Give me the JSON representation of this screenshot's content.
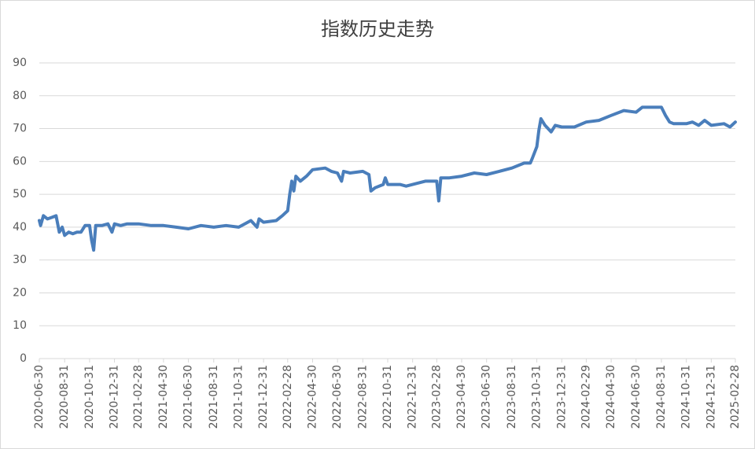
{
  "chart_data": {
    "type": "line",
    "title": "指数历史走势",
    "color": "#4a7ebb",
    "grid": true,
    "x": [
      "2020-06-30",
      "2020-07-03",
      "2020-07-10",
      "2020-07-20",
      "2020-07-31",
      "2020-08-10",
      "2020-08-18",
      "2020-08-25",
      "2020-08-31",
      "2020-09-10",
      "2020-09-20",
      "2020-09-30",
      "2020-10-10",
      "2020-10-20",
      "2020-10-31",
      "2020-11-05",
      "2020-11-10",
      "2020-11-15",
      "2020-11-30",
      "2020-12-15",
      "2020-12-25",
      "2020-12-31",
      "2021-01-15",
      "2021-01-31",
      "2021-02-28",
      "2021-03-31",
      "2021-04-30",
      "2021-05-31",
      "2021-06-30",
      "2021-07-31",
      "2021-08-31",
      "2021-09-30",
      "2021-10-31",
      "2021-11-15",
      "2021-11-30",
      "2021-12-15",
      "2021-12-20",
      "2021-12-31",
      "2022-01-31",
      "2022-02-15",
      "2022-02-28",
      "2022-03-05",
      "2022-03-10",
      "2022-03-15",
      "2022-03-20",
      "2022-03-31",
      "2022-04-15",
      "2022-04-30",
      "2022-05-31",
      "2022-06-15",
      "2022-06-30",
      "2022-07-10",
      "2022-07-15",
      "2022-07-31",
      "2022-08-31",
      "2022-09-15",
      "2022-09-20",
      "2022-09-30",
      "2022-10-20",
      "2022-10-25",
      "2022-10-31",
      "2022-11-30",
      "2022-12-15",
      "2022-12-31",
      "2023-01-31",
      "2023-02-28",
      "2023-03-05",
      "2023-03-10",
      "2023-03-31",
      "2023-04-30",
      "2023-05-31",
      "2023-06-30",
      "2023-07-31",
      "2023-08-31",
      "2023-09-30",
      "2023-10-15",
      "2023-10-20",
      "2023-10-31",
      "2023-11-05",
      "2023-11-10",
      "2023-11-20",
      "2023-12-05",
      "2023-12-15",
      "2023-12-31",
      "2024-01-31",
      "2024-02-29",
      "2024-03-31",
      "2024-04-30",
      "2024-05-31",
      "2024-06-30",
      "2024-07-15",
      "2024-07-31",
      "2024-08-31",
      "2024-09-10",
      "2024-09-20",
      "2024-09-30",
      "2024-10-31",
      "2024-11-15",
      "2024-11-30",
      "2024-12-15",
      "2024-12-31",
      "2025-01-31",
      "2025-02-15",
      "2025-02-28"
    ],
    "values": [
      42,
      40.5,
      43.5,
      42.5,
      43,
      43.5,
      38.5,
      40,
      37.5,
      38.5,
      38,
      38.5,
      38.5,
      40.5,
      40.5,
      36,
      33,
      40.5,
      40.5,
      41,
      38.5,
      41,
      40.5,
      41,
      41,
      40.5,
      40.5,
      40,
      39.5,
      40.5,
      40,
      40.5,
      40,
      41,
      42,
      40,
      42.5,
      41.5,
      42,
      43.5,
      45,
      50,
      54,
      51,
      55.5,
      54,
      55.5,
      57.5,
      58,
      57,
      56.5,
      54,
      57,
      56.5,
      57,
      56,
      51,
      52,
      53,
      55,
      53,
      53,
      52.5,
      53,
      54,
      54,
      48,
      55,
      55,
      55.5,
      56.5,
      56,
      57,
      58,
      59.5,
      59.5,
      61,
      64.5,
      69.5,
      73,
      71,
      69,
      71,
      70.5,
      70.5,
      72,
      72.5,
      74,
      75.5,
      75,
      76.5,
      76.5,
      76.5,
      74,
      72,
      71.5,
      71.5,
      72,
      71,
      72.5,
      71,
      71.5,
      70.5,
      72
    ],
    "xlim": [
      "2020-06-30",
      "2025-02-28"
    ],
    "xticks": [
      "2020-06-30",
      "2020-08-31",
      "2020-10-31",
      "2020-12-31",
      "2021-02-28",
      "2021-04-30",
      "2021-06-30",
      "2021-08-31",
      "2021-10-31",
      "2021-12-31",
      "2022-02-28",
      "2022-04-30",
      "2022-06-30",
      "2022-08-31",
      "2022-10-31",
      "2022-12-31",
      "2023-02-28",
      "2023-04-30",
      "2023-06-30",
      "2023-08-31",
      "2023-10-31",
      "2023-12-31",
      "2024-02-29",
      "2024-04-30",
      "2024-06-30",
      "2024-08-31",
      "2024-10-31",
      "2024-12-31",
      "2025-02-28"
    ],
    "ylim": [
      0,
      90
    ],
    "yticks": [
      0,
      10,
      20,
      30,
      40,
      50,
      60,
      70,
      80,
      90
    ]
  }
}
